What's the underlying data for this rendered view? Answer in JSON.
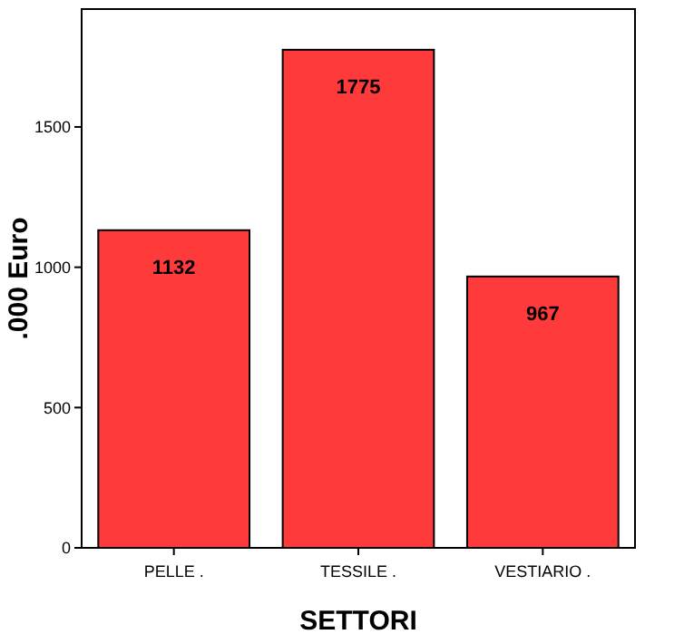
{
  "chart_data": {
    "type": "bar",
    "xlabel": "SETTORI",
    "ylabel": ".000 Euro",
    "categories": [
      "PELLE .",
      "TESSILE .",
      "VESTIARIO ."
    ],
    "values": [
      1132,
      1775,
      967
    ],
    "color": "#ff3a3a",
    "ylim": [
      0,
      1920
    ],
    "yticks": [
      0,
      500,
      1000,
      1500
    ],
    "data_labels": true,
    "grid": false
  }
}
